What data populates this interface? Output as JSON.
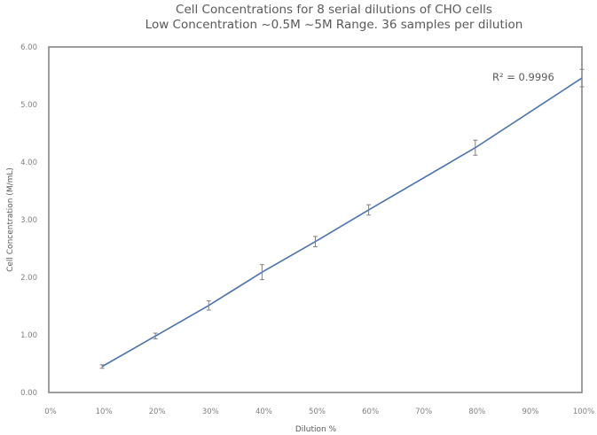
{
  "chart": {
    "title_line1": "Cell Concentrations for 8 serial dilutions of CHO cells",
    "title_line2": "Low Concentration ~0.5M  ~5M Range. 36 samples per dilution",
    "r2_label": "R² = 0.9996",
    "line_color": "#4a72b0",
    "errorbar_color": "#808080"
  },
  "chart_data": {
    "type": "line",
    "title": "Cell Concentrations for 8 serial dilutions of CHO cells — Low Concentration ~0.5M ~5M Range. 36 samples per dilution",
    "xlabel": "Dilution %",
    "ylabel": "Cell Concentration (M/mL)",
    "xlim": [
      0,
      100
    ],
    "ylim": [
      0,
      6
    ],
    "x_ticks": [
      "0%",
      "10%",
      "20%",
      "30%",
      "40%",
      "50%",
      "60%",
      "70%",
      "80%",
      "90%",
      "100%"
    ],
    "y_ticks": [
      "0.00",
      "1.00",
      "2.00",
      "3.00",
      "4.00",
      "5.00",
      "6.00"
    ],
    "grid": false,
    "legend": null,
    "annotation": "R² = 0.9996",
    "series": [
      {
        "name": "Cell Concentration",
        "x": [
          10,
          20,
          30,
          40,
          50,
          60,
          80,
          100
        ],
        "values": [
          0.45,
          0.98,
          1.51,
          2.09,
          2.62,
          3.17,
          4.25,
          5.46
        ],
        "error": [
          0.03,
          0.05,
          0.08,
          0.13,
          0.09,
          0.09,
          0.13,
          0.15
        ]
      }
    ]
  }
}
